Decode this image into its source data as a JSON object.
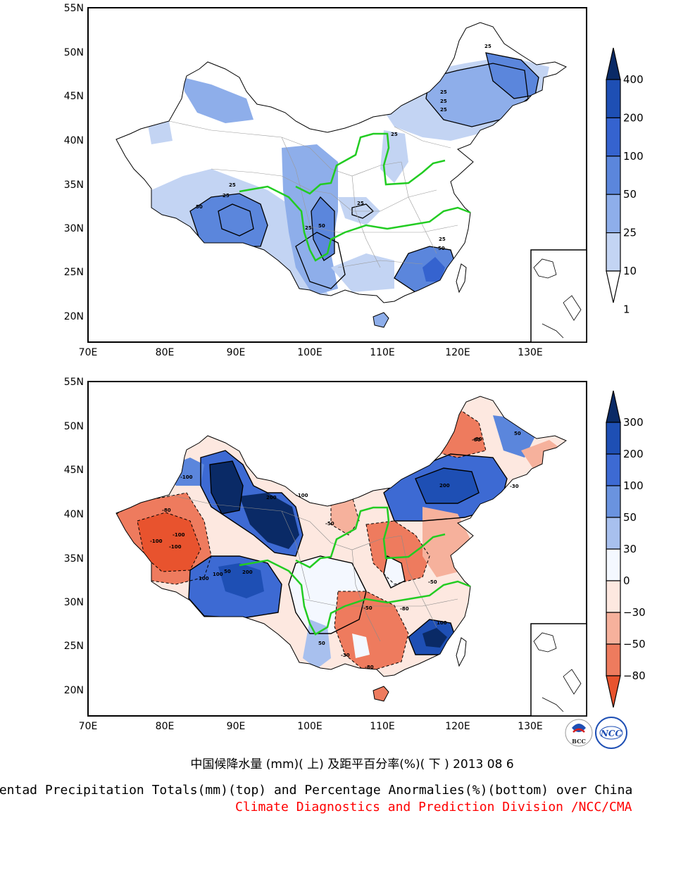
{
  "chart_data": [
    {
      "type": "map",
      "panel": "top",
      "lon_ticks": [
        "70E",
        "80E",
        "90E",
        "100E",
        "110E",
        "120E",
        "130E"
      ],
      "lat_ticks": [
        "55N",
        "50N",
        "45N",
        "40N",
        "35N",
        "30N",
        "25N",
        "20N"
      ],
      "colorbar": {
        "labels": [
          "400",
          "200",
          "100",
          "50",
          "25",
          "10",
          "1"
        ],
        "colors": [
          "#0a2a66",
          "#1e4fb4",
          "#3563cf",
          "#5b86dc",
          "#8eaeea",
          "#c3d4f3",
          "#ffffff"
        ]
      },
      "contour_labels": [
        "25",
        "25",
        "25",
        "25",
        "25",
        "25",
        "50",
        "25",
        "50",
        "25",
        "25",
        "25",
        "50"
      ]
    },
    {
      "type": "map",
      "panel": "bottom",
      "lon_ticks": [
        "70E",
        "80E",
        "90E",
        "100E",
        "110E",
        "120E",
        "130E"
      ],
      "lat_ticks": [
        "55N",
        "50N",
        "45N",
        "40N",
        "35N",
        "30N",
        "25N",
        "20N"
      ],
      "colorbar": {
        "labels": [
          "300",
          "200",
          "100",
          "50",
          "30",
          "0",
          "−30",
          "−50",
          "−80"
        ],
        "colors": [
          "#0a2a66",
          "#1e4fb4",
          "#3d6ad3",
          "#6a93df",
          "#a8c0ee",
          "#f4f8ff",
          "#fde8e0",
          "#f6b19c",
          "#ee7b5e",
          "#e8532e"
        ]
      },
      "contour_labels": [
        "-100",
        "-100",
        "-100",
        "-80",
        "-100",
        "100",
        "200",
        "100",
        "50",
        "200",
        "-80",
        "-50",
        "-50",
        "-30",
        "200",
        "-80",
        "-50",
        "100",
        "50",
        "-30",
        "-80",
        "50",
        "-80",
        "-100"
      ]
    }
  ],
  "caption": {
    "cn": "中国候降水量 (mm)( 上) 及距平百分率(%)( 下 ) 2013 08 6",
    "en": "Pentad Precipitation Totals(mm)(top) and Percentage Anormalies(%)(bottom) over China",
    "credit": "Climate Diagnostics and Prediction Division /NCC/CMA"
  },
  "logos": {
    "bcc": "BCC",
    "ncc": "NCC"
  }
}
